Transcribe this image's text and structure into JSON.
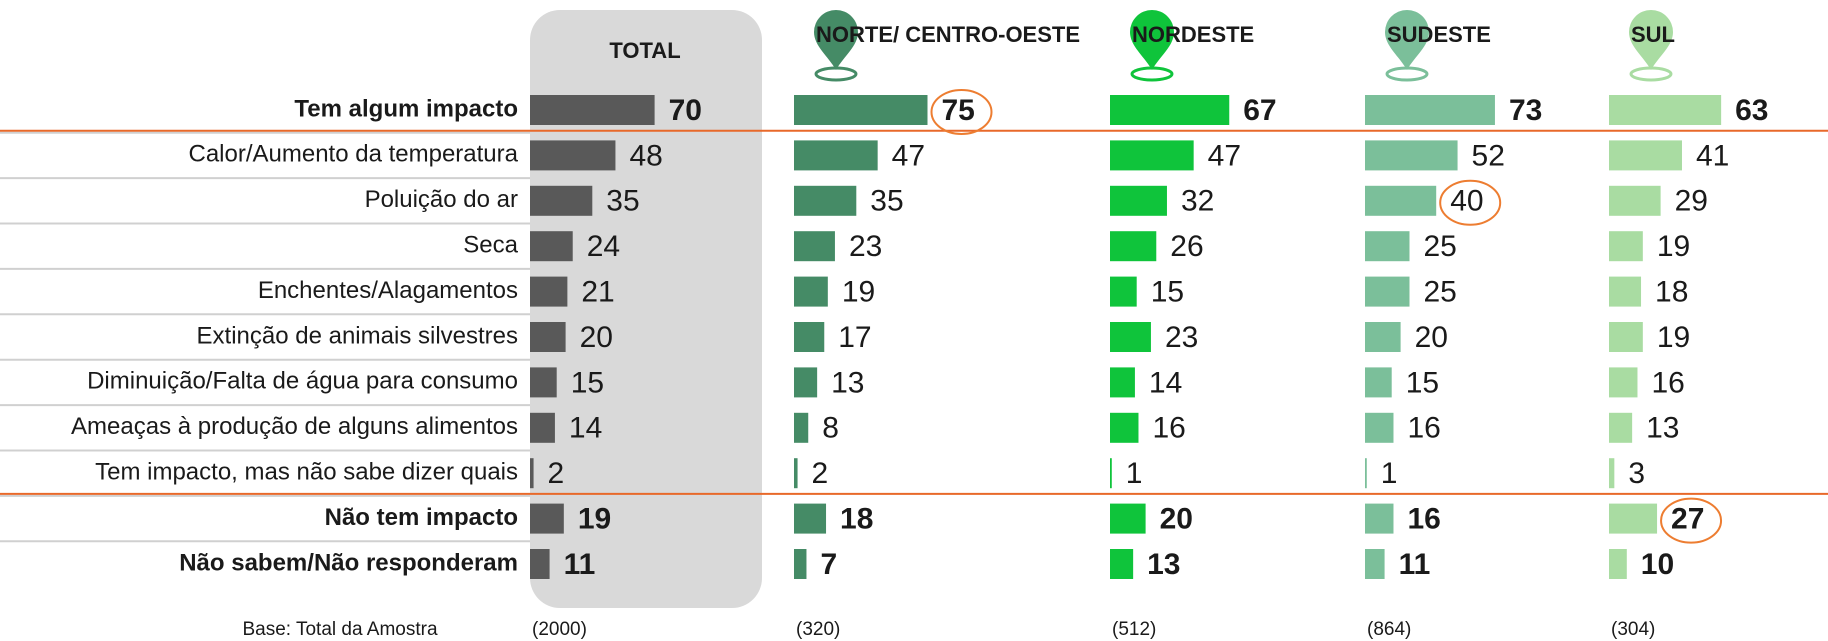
{
  "chart_data": {
    "type": "bar",
    "categories": [
      "Tem algum impacto",
      "Calor/Aumento da temperatura",
      "Poluição do ar",
      "Seca",
      "Enchentes/Alagamentos",
      "Extinção de animais silvestres",
      "Diminuição/Falta de água para consumo",
      "Ameaças à produção de alguns alimentos",
      "Tem impacto, mas não sabe dizer quais",
      "Não tem impacto",
      "Não sabem/Não responderam"
    ],
    "emphasized": [
      0,
      9,
      10
    ],
    "separators_after": [
      0,
      8
    ],
    "base_label": "Base: Total da Amostra",
    "series": [
      {
        "name": "TOTAL",
        "color": "#595959",
        "base": "(2000)",
        "values": [
          70,
          48,
          35,
          24,
          21,
          20,
          15,
          14,
          2,
          19,
          11
        ],
        "circled": []
      },
      {
        "name": "NORTE/ CENTRO-OESTE",
        "color": "#458b66",
        "base": "(320)",
        "values": [
          75,
          47,
          35,
          23,
          19,
          17,
          13,
          8,
          2,
          18,
          7
        ],
        "circled": [
          0
        ]
      },
      {
        "name": "NORDESTE",
        "color": "#0fc43b",
        "base": "(512)",
        "values": [
          67,
          47,
          32,
          26,
          15,
          23,
          14,
          16,
          1,
          20,
          13
        ],
        "circled": []
      },
      {
        "name": "SUDESTE",
        "color": "#7bbf9a",
        "base": "(864)",
        "values": [
          73,
          52,
          40,
          25,
          25,
          20,
          15,
          16,
          1,
          16,
          11
        ],
        "circled": [
          2
        ]
      },
      {
        "name": "SUL",
        "color": "#a9dca2",
        "base": "(304)",
        "values": [
          63,
          41,
          29,
          19,
          18,
          19,
          16,
          13,
          3,
          27,
          10
        ],
        "circled": [
          9
        ]
      }
    ]
  }
}
